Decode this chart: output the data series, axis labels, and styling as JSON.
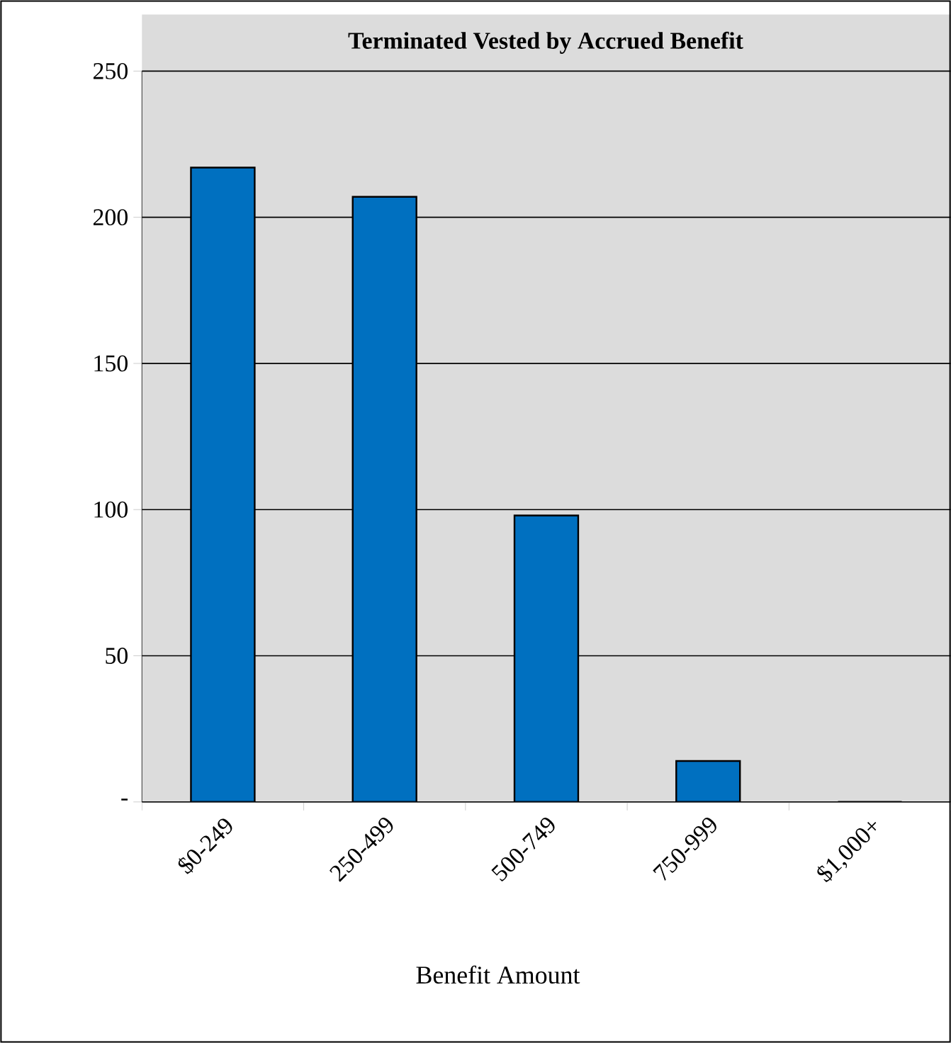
{
  "chart_data": {
    "type": "bar",
    "title": "Terminated Vested by Accrued Benefit",
    "xlabel": "Benefit Amount",
    "categories": [
      "$0-249",
      "250-499",
      "500-749",
      "750-999",
      "$1,000+"
    ],
    "values": [
      217,
      207,
      98,
      14,
      0
    ],
    "color": "#0070c0",
    "ylim": [
      0,
      250
    ],
    "yticks": [
      {
        "value": 0,
        "label": "-"
      },
      50,
      100,
      150,
      200,
      250
    ],
    "grid": "y"
  }
}
